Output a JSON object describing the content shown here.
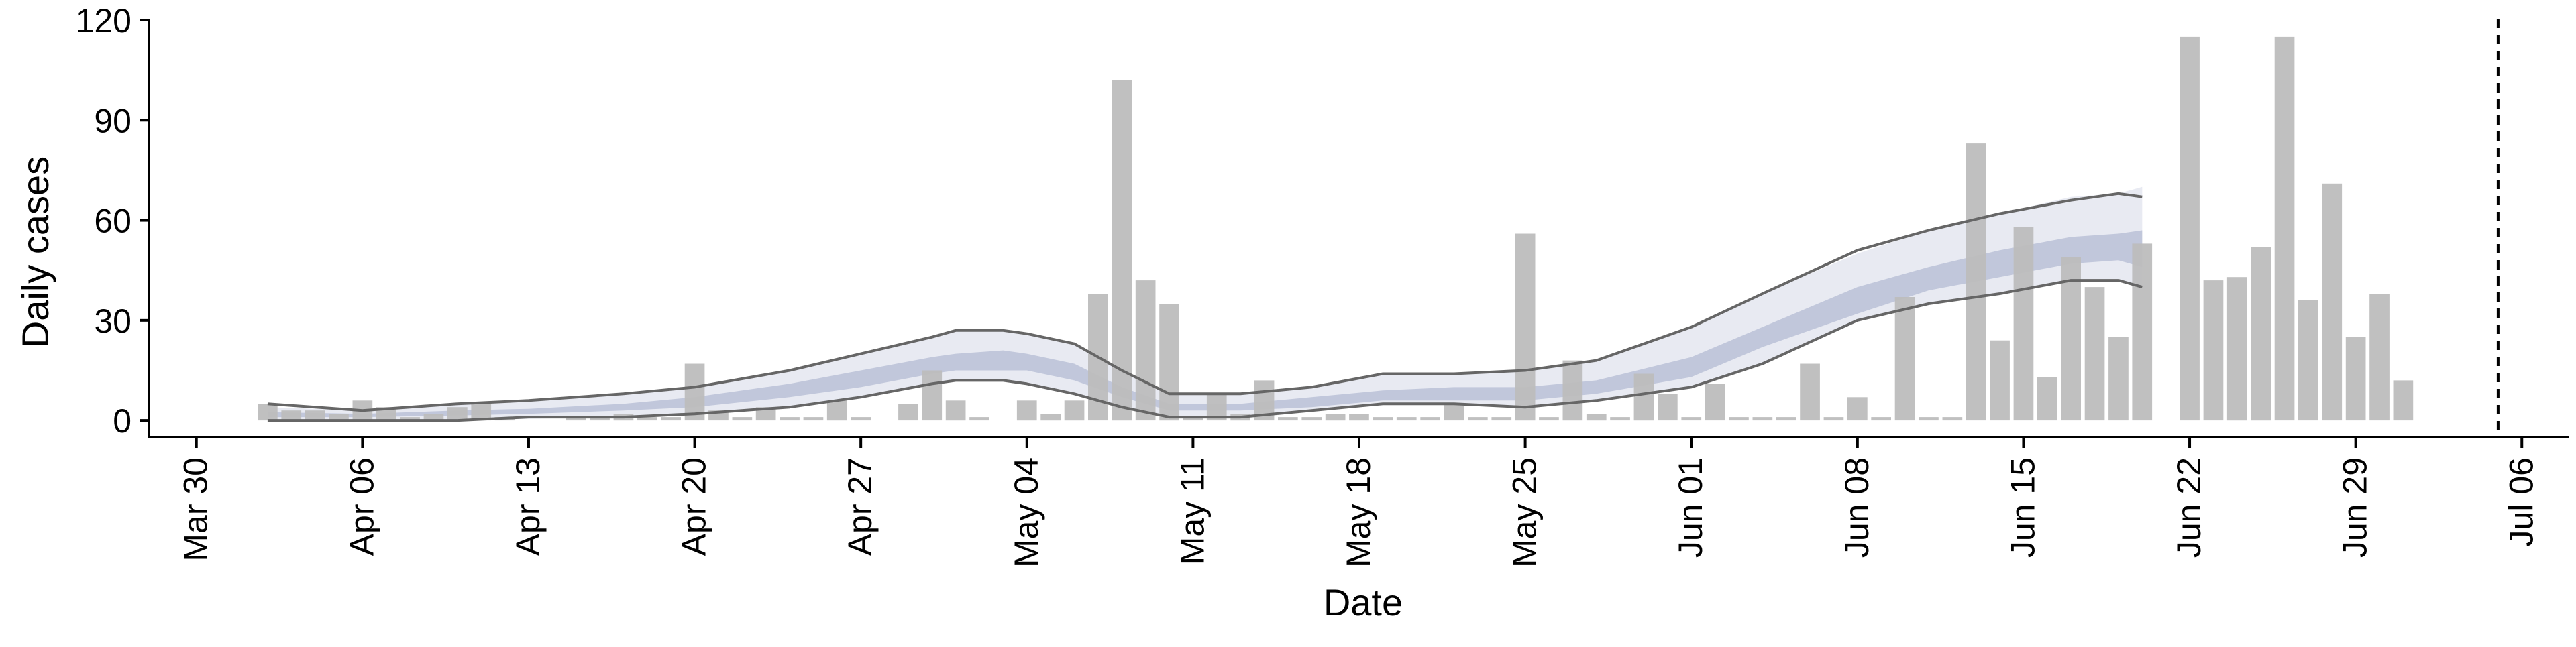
{
  "chart_data": {
    "type": "bar",
    "title": "",
    "xlabel": "Date",
    "ylabel": "Daily cases",
    "ylim": [
      -5,
      120
    ],
    "yticks": [
      0,
      30,
      60,
      90,
      120
    ],
    "xlim": [
      "2020-03-28",
      "2020-07-08"
    ],
    "xticks": [
      {
        "date": "2020-03-30",
        "label": "Mar 30"
      },
      {
        "date": "2020-04-06",
        "label": "Apr 06"
      },
      {
        "date": "2020-04-13",
        "label": "Apr 13"
      },
      {
        "date": "2020-04-20",
        "label": "Apr 20"
      },
      {
        "date": "2020-04-27",
        "label": "Apr 27"
      },
      {
        "date": "2020-05-04",
        "label": "May 04"
      },
      {
        "date": "2020-05-11",
        "label": "May 11"
      },
      {
        "date": "2020-05-18",
        "label": "May 18"
      },
      {
        "date": "2020-05-25",
        "label": "May 25"
      },
      {
        "date": "2020-06-01",
        "label": "Jun 01"
      },
      {
        "date": "2020-06-08",
        "label": "Jun 08"
      },
      {
        "date": "2020-06-15",
        "label": "Jun 15"
      },
      {
        "date": "2020-06-22",
        "label": "Jun 22"
      },
      {
        "date": "2020-06-29",
        "label": "Jun 29"
      },
      {
        "date": "2020-07-06",
        "label": "Jul 06"
      }
    ],
    "bars": {
      "dates": [
        "2020-04-02",
        "2020-04-03",
        "2020-04-04",
        "2020-04-05",
        "2020-04-06",
        "2020-04-07",
        "2020-04-08",
        "2020-04-09",
        "2020-04-10",
        "2020-04-11",
        "2020-04-12",
        "2020-04-13",
        "2020-04-14",
        "2020-04-15",
        "2020-04-16",
        "2020-04-17",
        "2020-04-18",
        "2020-04-19",
        "2020-04-20",
        "2020-04-21",
        "2020-04-22",
        "2020-04-23",
        "2020-04-24",
        "2020-04-25",
        "2020-04-26",
        "2020-04-27",
        "2020-04-28",
        "2020-04-29",
        "2020-04-30",
        "2020-05-01",
        "2020-05-02",
        "2020-05-03",
        "2020-05-04",
        "2020-05-05",
        "2020-05-06",
        "2020-05-07",
        "2020-05-08",
        "2020-05-09",
        "2020-05-10",
        "2020-05-11",
        "2020-05-12",
        "2020-05-13",
        "2020-05-14",
        "2020-05-15",
        "2020-05-16",
        "2020-05-17",
        "2020-05-18",
        "2020-05-19",
        "2020-05-20",
        "2020-05-21",
        "2020-05-22",
        "2020-05-23",
        "2020-05-24",
        "2020-05-25",
        "2020-05-26",
        "2020-05-27",
        "2020-05-28",
        "2020-05-29",
        "2020-05-30",
        "2020-05-31",
        "2020-06-01",
        "2020-06-02",
        "2020-06-03",
        "2020-06-04",
        "2020-06-05",
        "2020-06-06",
        "2020-06-07",
        "2020-06-08",
        "2020-06-09",
        "2020-06-10",
        "2020-06-11",
        "2020-06-12",
        "2020-06-13",
        "2020-06-14",
        "2020-06-15",
        "2020-06-16",
        "2020-06-17",
        "2020-06-18",
        "2020-06-19",
        "2020-06-20",
        "2020-06-21",
        "2020-06-22",
        "2020-06-23",
        "2020-06-24",
        "2020-06-25",
        "2020-06-26",
        "2020-06-27",
        "2020-06-28",
        "2020-06-29",
        "2020-06-30",
        "2020-07-01"
      ],
      "values": [
        5,
        3,
        3,
        2,
        6,
        4,
        1,
        2,
        4,
        5,
        1,
        0,
        0,
        1,
        1,
        2,
        1,
        1,
        17,
        3,
        1,
        4,
        1,
        1,
        6,
        1,
        0,
        5,
        15,
        6,
        1,
        0,
        6,
        2,
        6,
        38,
        102,
        42,
        35,
        1,
        8,
        2,
        12,
        1,
        1,
        2,
        2,
        1,
        1,
        1,
        5,
        1,
        1,
        56,
        1,
        18,
        2,
        1,
        14,
        8,
        1,
        11,
        1,
        1,
        1,
        17,
        1,
        7,
        1,
        37,
        1,
        1,
        83,
        24,
        58,
        13,
        49,
        40,
        25,
        53,
        0,
        115,
        42,
        43,
        52,
        115,
        36,
        71,
        25,
        38,
        12
      ]
    },
    "series": [
      {
        "role": "outer-interval",
        "color": "#e6e8f1",
        "dates": [
          "2020-04-02",
          "2020-04-06",
          "2020-04-10",
          "2020-04-13",
          "2020-04-17",
          "2020-04-20",
          "2020-04-24",
          "2020-04-27",
          "2020-04-30",
          "2020-05-01",
          "2020-05-03",
          "2020-05-04",
          "2020-05-06",
          "2020-05-08",
          "2020-05-10",
          "2020-05-13",
          "2020-05-16",
          "2020-05-19",
          "2020-05-22",
          "2020-05-25",
          "2020-05-28",
          "2020-06-01",
          "2020-06-04",
          "2020-06-08",
          "2020-06-11",
          "2020-06-14",
          "2020-06-17",
          "2020-06-19",
          "2020-06-20"
        ],
        "upper": [
          4,
          3,
          5,
          6,
          8,
          10,
          15,
          20,
          25,
          27,
          27,
          26,
          23,
          15,
          8,
          8,
          10,
          14,
          14,
          15,
          18,
          28,
          38,
          50,
          57,
          62,
          67,
          68,
          70
        ],
        "lower": [
          0,
          0,
          0,
          0.5,
          1,
          2,
          4,
          7,
          11,
          12,
          12,
          11,
          8,
          4,
          1,
          1,
          3,
          5,
          5,
          4,
          6,
          10,
          17,
          30,
          35,
          38,
          42,
          42,
          40
        ]
      },
      {
        "role": "inner-interval",
        "color": "#bcc3d8",
        "dates": [
          "2020-04-02",
          "2020-04-06",
          "2020-04-10",
          "2020-04-13",
          "2020-04-17",
          "2020-04-20",
          "2020-04-24",
          "2020-04-27",
          "2020-04-30",
          "2020-05-01",
          "2020-05-03",
          "2020-05-04",
          "2020-05-06",
          "2020-05-08",
          "2020-05-10",
          "2020-05-13",
          "2020-05-16",
          "2020-05-19",
          "2020-05-22",
          "2020-05-25",
          "2020-05-28",
          "2020-06-01",
          "2020-06-04",
          "2020-06-08",
          "2020-06-11",
          "2020-06-14",
          "2020-06-17",
          "2020-06-19",
          "2020-06-20"
        ],
        "upper": [
          2.5,
          2,
          3,
          3.5,
          5,
          7,
          11,
          15,
          19,
          20,
          21,
          20,
          17,
          10,
          5,
          5,
          7,
          9,
          10,
          10,
          12,
          19,
          28,
          40,
          46,
          51,
          55,
          56,
          57
        ],
        "lower": [
          1,
          1,
          1.5,
          2,
          3,
          4,
          7,
          10,
          14,
          15,
          15,
          15,
          12,
          7,
          3,
          3,
          4,
          6,
          6,
          6,
          8,
          13,
          22,
          32,
          39,
          43,
          47,
          48,
          46
        ]
      },
      {
        "role": "upper-line",
        "color": "#666666",
        "dates": [
          "2020-04-02",
          "2020-04-06",
          "2020-04-10",
          "2020-04-13",
          "2020-04-17",
          "2020-04-20",
          "2020-04-24",
          "2020-04-27",
          "2020-04-30",
          "2020-05-01",
          "2020-05-03",
          "2020-05-04",
          "2020-05-06",
          "2020-05-08",
          "2020-05-10",
          "2020-05-13",
          "2020-05-16",
          "2020-05-19",
          "2020-05-22",
          "2020-05-25",
          "2020-05-28",
          "2020-06-01",
          "2020-06-04",
          "2020-06-08",
          "2020-06-11",
          "2020-06-14",
          "2020-06-17",
          "2020-06-19",
          "2020-06-20"
        ],
        "values": [
          5,
          3,
          5,
          6,
          8,
          10,
          15,
          20,
          25,
          27,
          27,
          26,
          23,
          15,
          8,
          8,
          10,
          14,
          14,
          15,
          18,
          28,
          38,
          51,
          57,
          62,
          66,
          68,
          67
        ]
      },
      {
        "role": "lower-line",
        "color": "#666666",
        "dates": [
          "2020-04-02",
          "2020-04-06",
          "2020-04-10",
          "2020-04-13",
          "2020-04-17",
          "2020-04-20",
          "2020-04-24",
          "2020-04-27",
          "2020-04-30",
          "2020-05-01",
          "2020-05-03",
          "2020-05-04",
          "2020-05-06",
          "2020-05-08",
          "2020-05-10",
          "2020-05-13",
          "2020-05-16",
          "2020-05-19",
          "2020-05-22",
          "2020-05-25",
          "2020-05-28",
          "2020-06-01",
          "2020-06-04",
          "2020-06-08",
          "2020-06-11",
          "2020-06-14",
          "2020-06-17",
          "2020-06-19",
          "2020-06-20"
        ],
        "values": [
          0,
          0,
          0,
          1,
          1,
          2,
          4,
          7,
          11,
          12,
          12,
          11,
          8,
          4,
          1,
          1,
          3,
          5,
          5,
          4,
          6,
          10,
          17,
          30,
          35,
          38,
          42,
          42,
          40
        ]
      }
    ],
    "reference_line": {
      "date": "2020-07-05",
      "style": "dashed"
    },
    "bar_color": "#bdbdbd",
    "axis_color": "#000000",
    "grid": false,
    "legend": "none"
  }
}
